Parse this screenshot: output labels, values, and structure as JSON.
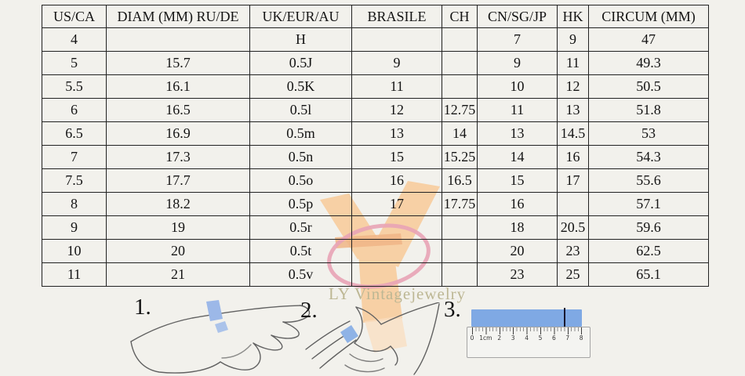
{
  "table": {
    "columns": [
      "US/CA",
      "DIAM (MM) RU/DE",
      "UK/EUR/AU",
      "BRASILE",
      "CH",
      "CN/SG/JP",
      "HK",
      "CIRCUM (MM)"
    ],
    "rows": [
      [
        "4",
        "",
        "H",
        "",
        "",
        "7",
        "9",
        "47"
      ],
      [
        "5",
        "15.7",
        "0.5J",
        "9",
        "",
        "9",
        "11",
        "49.3"
      ],
      [
        "5.5",
        "16.1",
        "0.5K",
        "11",
        "",
        "10",
        "12",
        "50.5"
      ],
      [
        "6",
        "16.5",
        "0.5l",
        "12",
        "12.75",
        "11",
        "13",
        "51.8"
      ],
      [
        "6.5",
        "16.9",
        "0.5m",
        "13",
        "14",
        "13",
        "14.5",
        "53"
      ],
      [
        "7",
        "17.3",
        "0.5n",
        "15",
        "15.25",
        "14",
        "16",
        "54.3"
      ],
      [
        "7.5",
        "17.7",
        "0.5o",
        "16",
        "16.5",
        "15",
        "17",
        "55.6"
      ],
      [
        "8",
        "18.2",
        "0.5p",
        "17",
        "17.75",
        "16",
        "",
        "57.1"
      ],
      [
        "9",
        "19",
        "0.5r",
        "",
        "",
        "18",
        "20.5",
        "59.6"
      ],
      [
        "10",
        "20",
        "0.5t",
        "",
        "",
        "20",
        "23",
        "62.5"
      ],
      [
        "11",
        "21",
        "0.5v",
        "",
        "",
        "23",
        "25",
        "65.1"
      ]
    ]
  },
  "watermark": {
    "text": "LY Vintagejewelry"
  },
  "instructions": {
    "steps": [
      {
        "label": "1."
      },
      {
        "label": "2."
      },
      {
        "label": "3."
      }
    ],
    "ruler": {
      "labels": [
        "0",
        "1cm",
        "2",
        "3",
        "4",
        "5",
        "6",
        "7",
        "8"
      ]
    }
  },
  "colors": {
    "background": "#f2f1ec",
    "table_border": "#222222",
    "paper_strip_blue": "#7fa9e4",
    "hand_strip_blue": "#9cb8e8",
    "watermark_peach": "#f7d0a5",
    "watermark_pink": "#e8a3b6",
    "watermark_text": "#bdb794"
  }
}
